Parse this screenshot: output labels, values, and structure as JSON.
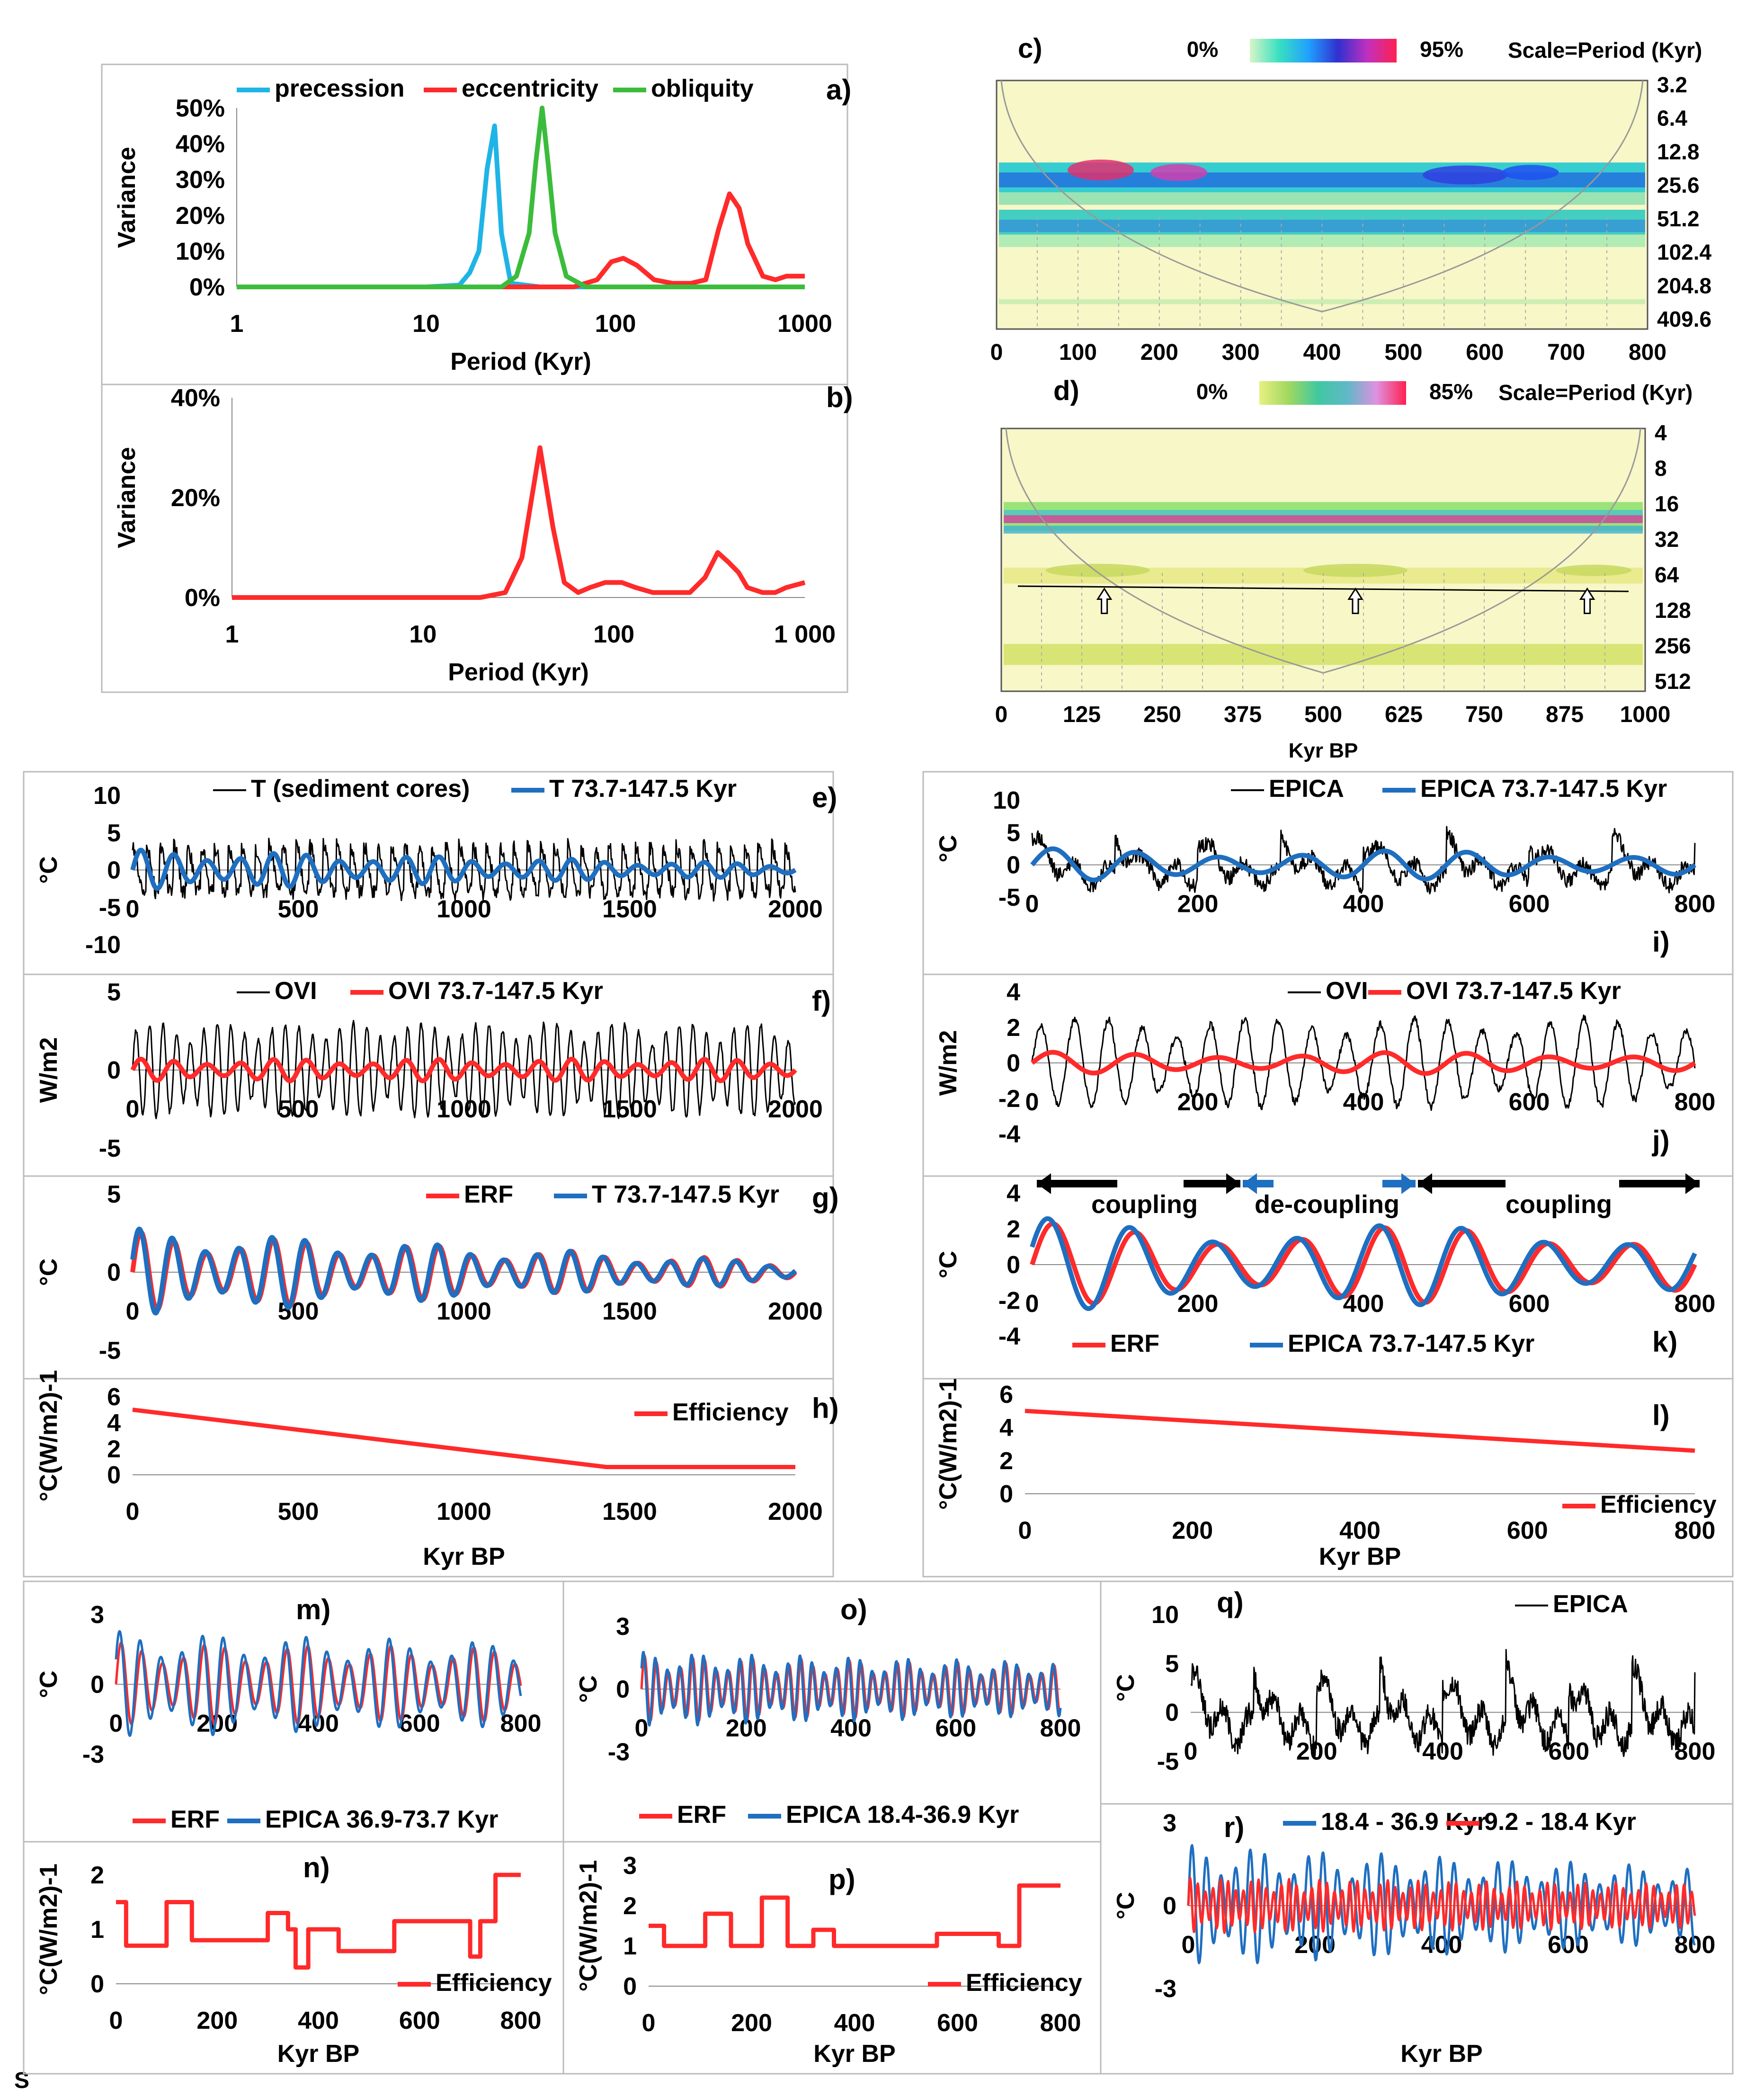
{
  "colors": {
    "black": "#000000",
    "red": "#ff2a2a",
    "blue": "#1f6fc0",
    "cyan": "#1fb4e6",
    "green": "#3cbc3c",
    "panel_border": "#bbbbbb",
    "wavelet_bg": "#f7f7c8"
  },
  "figure_footer": "S",
  "chart_data": [
    {
      "id": "a",
      "type": "line",
      "panel_label": "a)",
      "log_x": true,
      "xlabel": "Period (Kyr)",
      "ylabel": "Variance",
      "x_ticks": [
        1,
        10,
        100,
        1000
      ],
      "x_tick_labels": [
        "1",
        "10",
        "100",
        "1000"
      ],
      "y_ticks": [
        0,
        10,
        20,
        30,
        40,
        50
      ],
      "y_tick_labels": [
        "0%",
        "10%",
        "20%",
        "30%",
        "40%",
        "50%"
      ],
      "xlim": [
        1,
        1000
      ],
      "ylim": [
        0,
        50
      ],
      "series": [
        {
          "name": "precession",
          "color": "#1fb4e6",
          "x": [
            1,
            10,
            15,
            17,
            19,
            21,
            23,
            25,
            28,
            40,
            100,
            1000
          ],
          "y": [
            0,
            0,
            0.5,
            4,
            10,
            33,
            45,
            15,
            1,
            0,
            0,
            0
          ]
        },
        {
          "name": "eccentricity",
          "color": "#ff2a2a",
          "x": [
            1,
            30,
            60,
            80,
            95,
            110,
            130,
            160,
            200,
            250,
            300,
            350,
            400,
            450,
            500,
            600,
            700,
            800,
            900,
            1000
          ],
          "y": [
            0,
            0,
            0,
            2,
            7,
            8,
            6,
            2,
            1,
            1,
            2,
            16,
            26,
            22,
            12,
            3,
            2,
            3,
            3,
            3
          ]
        },
        {
          "name": "obliquity",
          "color": "#3cbc3c",
          "x": [
            1,
            25,
            30,
            35,
            38,
            41,
            44,
            48,
            55,
            70,
            1000
          ],
          "y": [
            0,
            0,
            3,
            15,
            35,
            50,
            35,
            15,
            3,
            0,
            0
          ]
        }
      ]
    },
    {
      "id": "b",
      "type": "line",
      "panel_label": "b)",
      "log_x": true,
      "xlabel": "Period (Kyr)",
      "ylabel": "Variance",
      "x_ticks": [
        1,
        10,
        100,
        1000
      ],
      "x_tick_labels": [
        "1",
        "10",
        "100",
        "1 000"
      ],
      "y_ticks": [
        0,
        20,
        40
      ],
      "y_tick_labels": [
        "0%",
        "20%",
        "40%"
      ],
      "xlim": [
        1,
        1000
      ],
      "ylim": [
        0,
        40
      ],
      "series": [
        {
          "name": "spectrum",
          "color": "#ff2a2a",
          "x": [
            1,
            20,
            27,
            33,
            41,
            48,
            55,
            65,
            75,
            90,
            110,
            130,
            160,
            200,
            250,
            300,
            350,
            400,
            450,
            500,
            600,
            700,
            800,
            1000
          ],
          "y": [
            0,
            0,
            1,
            8,
            30,
            14,
            3,
            1,
            2,
            3,
            3,
            2,
            1,
            1,
            1,
            4,
            9,
            7,
            5,
            2,
            1,
            1,
            2,
            3
          ]
        }
      ]
    },
    {
      "id": "c",
      "type": "heatmap",
      "panel_label": "c)",
      "colorbar_min_label": "0%",
      "colorbar_max_label": "95%",
      "scale_label": "Scale=Period (Kyr)",
      "x_tick_labels": [
        "0",
        "100",
        "200",
        "300",
        "400",
        "500",
        "600",
        "700",
        "800"
      ],
      "y_tick_labels": [
        "3.2",
        "6.4",
        "12.8",
        "25.6",
        "51.2",
        "102.4",
        "204.8",
        "409.6"
      ],
      "xlabel": ""
    },
    {
      "id": "d",
      "type": "heatmap",
      "panel_label": "d)",
      "colorbar_min_label": "0%",
      "colorbar_max_label": "85%",
      "scale_label": "Scale=Period (Kyr)",
      "x_tick_labels": [
        "0",
        "125",
        "250",
        "375",
        "500",
        "625",
        "750",
        "875",
        "1000"
      ],
      "y_tick_labels": [
        "4",
        "8",
        "16",
        "32",
        "64",
        "128",
        "256",
        "512"
      ],
      "xlabel": "Kyr BP"
    },
    {
      "id": "e",
      "type": "line",
      "panel_label": "e)",
      "ylabel": "°C",
      "xlim": [
        0,
        2000
      ],
      "ylim": [
        -10,
        10
      ],
      "x_tick_labels": [
        "0",
        "500",
        "1000",
        "1500",
        "2000"
      ],
      "y_tick_labels": [
        "10",
        "5",
        "0",
        "-5",
        "-10"
      ],
      "legend": [
        "T (sediment cores)",
        "T 73.7-147.5 Kyr"
      ],
      "series": [
        {
          "name": "T (sediment cores)",
          "color": "#000000",
          "kind": "noisy",
          "amplitude": 3.5,
          "period": 41
        },
        {
          "name": "T 73.7-147.5 Kyr",
          "color": "#1f6fc0",
          "kind": "band",
          "amplitude_start": 2.7,
          "amplitude_end": 0.8,
          "period": 100
        }
      ]
    },
    {
      "id": "f",
      "type": "line",
      "panel_label": "f)",
      "ylabel": "W/m2",
      "xlim": [
        0,
        2000
      ],
      "ylim": [
        -5,
        5
      ],
      "x_tick_labels": [
        "0",
        "500",
        "1000",
        "1500",
        "2000"
      ],
      "y_tick_labels": [
        "5",
        "0",
        "-5"
      ],
      "legend": [
        "OVI",
        "OVI 73.7-147.5 Kyr"
      ],
      "series": [
        {
          "name": "OVI",
          "color": "#000000",
          "kind": "oscillation",
          "amplitude": 3,
          "period": 41
        },
        {
          "name": "OVI 73.7-147.5 Kyr",
          "color": "#ff2a2a",
          "kind": "band",
          "amplitude_start": 0.7,
          "amplitude_end": 0.7,
          "period": 100
        }
      ]
    },
    {
      "id": "g",
      "type": "line",
      "panel_label": "g)",
      "ylabel": "°C",
      "xlim": [
        0,
        2000
      ],
      "ylim": [
        -5,
        5
      ],
      "x_tick_labels": [
        "0",
        "500",
        "1000",
        "1500",
        "2000"
      ],
      "y_tick_labels": [
        "5",
        "0",
        "-5"
      ],
      "legend": [
        "ERF",
        "T 73.7-147.5 Kyr"
      ],
      "series": [
        {
          "name": "ERF",
          "color": "#ff2a2a",
          "kind": "band",
          "amplitude_start": 2.6,
          "amplitude_end": 0.7,
          "period": 100
        },
        {
          "name": "T 73.7-147.5 Kyr",
          "color": "#1f6fc0",
          "kind": "band",
          "amplitude_start": 2.8,
          "amplitude_end": 0.6,
          "period": 100,
          "phase": 0.3
        }
      ]
    },
    {
      "id": "h",
      "type": "line",
      "panel_label": "h)",
      "ylabel": "°C(W/m2)-1",
      "xlabel": "Kyr BP",
      "xlim": [
        0,
        2000
      ],
      "ylim": [
        0,
        6
      ],
      "x_tick_labels": [
        "0",
        "500",
        "1000",
        "1500",
        "2000"
      ],
      "y_tick_labels": [
        "6",
        "4",
        "2",
        "0"
      ],
      "legend": [
        "Efficiency"
      ],
      "series": [
        {
          "name": "Efficiency",
          "color": "#ff2a2a",
          "kind": "points",
          "x": [
            0,
            1430,
            2000
          ],
          "y": [
            5,
            0.6,
            0.6
          ]
        }
      ]
    },
    {
      "id": "i",
      "type": "line",
      "panel_label": "i)",
      "ylabel": "°C",
      "xlim": [
        0,
        800
      ],
      "ylim": [
        -5,
        10
      ],
      "x_tick_labels": [
        "0",
        "200",
        "400",
        "600",
        "800"
      ],
      "y_tick_labels": [
        "10",
        "5",
        "0",
        "-5"
      ],
      "legend": [
        "EPICA",
        "EPICA 73.7-147.5 Kyr"
      ],
      "series": [
        {
          "name": "EPICA",
          "color": "#000000",
          "kind": "noisy",
          "amplitude": 4,
          "period": 100
        },
        {
          "name": "EPICA 73.7-147.5 Kyr",
          "color": "#1f6fc0",
          "kind": "band",
          "amplitude_start": 2.5,
          "amplitude_end": 2,
          "period": 100
        }
      ]
    },
    {
      "id": "j",
      "type": "line",
      "panel_label": "j)",
      "ylabel": "W/m2",
      "xlim": [
        0,
        800
      ],
      "ylim": [
        -4,
        4
      ],
      "x_tick_labels": [
        "0",
        "200",
        "400",
        "600",
        "800"
      ],
      "y_tick_labels": [
        "4",
        "2",
        "0",
        "-2",
        "-4"
      ],
      "legend": [
        "OVI",
        "OVI 73.7-147.5 Kyr"
      ],
      "series": [
        {
          "name": "OVI",
          "color": "#000000",
          "kind": "oscillation",
          "amplitude": 2.5,
          "period": 41
        },
        {
          "name": "OVI 73.7-147.5 Kyr",
          "color": "#ff2a2a",
          "kind": "band",
          "amplitude_start": 0.6,
          "amplitude_end": 0.6,
          "period": 100
        }
      ]
    },
    {
      "id": "k",
      "type": "line",
      "panel_label": "k)",
      "ylabel": "°C",
      "xlim": [
        0,
        800
      ],
      "ylim": [
        -4,
        4
      ],
      "x_tick_labels": [
        "0",
        "200",
        "400",
        "600",
        "800"
      ],
      "y_tick_labels": [
        "4",
        "2",
        "0",
        "-2",
        "-4"
      ],
      "legend": [
        "ERF",
        "EPICA 73.7-147.5 Kyr"
      ],
      "annotations": [
        "coupling",
        "de-coupling",
        "coupling"
      ],
      "series": [
        {
          "name": "ERF",
          "color": "#ff2a2a",
          "kind": "band",
          "amplitude_start": 2.3,
          "amplitude_end": 2.0,
          "period": 100
        },
        {
          "name": "EPICA 73.7-147.5 Kyr",
          "color": "#1f6fc0",
          "kind": "band",
          "amplitude_start": 2.6,
          "amplitude_end": 2.0,
          "period": 100,
          "phase": 0.4
        }
      ]
    },
    {
      "id": "l",
      "type": "line",
      "panel_label": "l)",
      "ylabel": "°C(W/m2)-1",
      "xlabel": "Kyr BP",
      "xlim": [
        0,
        800
      ],
      "ylim": [
        0,
        6
      ],
      "x_tick_labels": [
        "0",
        "200",
        "400",
        "600",
        "800"
      ],
      "y_tick_labels": [
        "6",
        "4",
        "2",
        "0"
      ],
      "legend": [
        "Efficiency"
      ],
      "series": [
        {
          "name": "Efficiency",
          "color": "#ff2a2a",
          "kind": "points",
          "x": [
            0,
            800
          ],
          "y": [
            5,
            2.6
          ]
        }
      ]
    },
    {
      "id": "m",
      "type": "line",
      "panel_label": "m)",
      "ylabel": "°C",
      "xlim": [
        0,
        800
      ],
      "ylim": [
        -3,
        3
      ],
      "x_tick_labels": [
        "0",
        "200",
        "400",
        "600",
        "800"
      ],
      "y_tick_labels": [
        "3",
        "0",
        "-3"
      ],
      "legend": [
        "ERF",
        "EPICA 36.9-73.7 Kyr"
      ],
      "series": [
        {
          "name": "ERF",
          "color": "#ff2a2a",
          "kind": "band",
          "amplitude_start": 1.8,
          "amplitude_end": 1.6,
          "period": 41
        },
        {
          "name": "EPICA 36.9-73.7 Kyr",
          "color": "#1f6fc0",
          "kind": "band",
          "amplitude_start": 2.3,
          "amplitude_end": 1.8,
          "period": 41,
          "phase": 0.5
        }
      ]
    },
    {
      "id": "n",
      "type": "line",
      "panel_label": "n)",
      "ylabel": "°C(W/m2)-1",
      "xlabel": "Kyr BP",
      "xlim": [
        0,
        800
      ],
      "ylim": [
        0,
        2
      ],
      "x_tick_labels": [
        "0",
        "200",
        "400",
        "600",
        "800"
      ],
      "y_tick_labels": [
        "2",
        "1",
        "0"
      ],
      "legend": [
        "Efficiency"
      ],
      "series": [
        {
          "name": "Efficiency",
          "color": "#ff2a2a",
          "kind": "step",
          "x": [
            0,
            20,
            100,
            150,
            300,
            340,
            355,
            380,
            440,
            550,
            700,
            720,
            750,
            800
          ],
          "y": [
            1.5,
            0.7,
            1.5,
            0.8,
            1.3,
            1.0,
            0.3,
            1.0,
            0.6,
            1.15,
            0.5,
            1.15,
            2.0,
            2.0
          ]
        }
      ]
    },
    {
      "id": "o",
      "type": "line",
      "panel_label": "o)",
      "ylabel": "°C",
      "xlim": [
        0,
        800
      ],
      "ylim": [
        -3,
        3
      ],
      "x_tick_labels": [
        "0",
        "200",
        "400",
        "600",
        "800"
      ],
      "y_tick_labels": [
        "3",
        "0",
        "-3"
      ],
      "legend": [
        "ERF",
        "EPICA 18.4-36.9 Kyr"
      ],
      "series": [
        {
          "name": "ERF",
          "color": "#ff2a2a",
          "kind": "band",
          "amplitude_start": 1.6,
          "amplitude_end": 1.2,
          "period": 23
        },
        {
          "name": "EPICA 18.4-36.9 Kyr",
          "color": "#1f6fc0",
          "kind": "band",
          "amplitude_start": 1.8,
          "amplitude_end": 1.3,
          "period": 23,
          "phase": 0.6
        }
      ]
    },
    {
      "id": "p",
      "type": "line",
      "panel_label": "p)",
      "ylabel": "°C(W/m2)-1",
      "xlabel": "Kyr BP",
      "xlim": [
        0,
        800
      ],
      "ylim": [
        0,
        3
      ],
      "x_tick_labels": [
        "0",
        "200",
        "400",
        "600",
        "800"
      ],
      "y_tick_labels": [
        "3",
        "2",
        "1",
        "0"
      ],
      "legend": [
        "Efficiency"
      ],
      "series": [
        {
          "name": "Efficiency",
          "color": "#ff2a2a",
          "kind": "step",
          "x": [
            0,
            30,
            110,
            160,
            220,
            270,
            320,
            360,
            560,
            680,
            720,
            800
          ],
          "y": [
            1.5,
            1.0,
            1.8,
            1.0,
            2.2,
            1.0,
            1.4,
            1.0,
            1.3,
            1.0,
            2.5,
            2.5
          ]
        }
      ]
    },
    {
      "id": "q",
      "type": "line",
      "panel_label": "q)",
      "ylabel": "°C",
      "xlim": [
        0,
        800
      ],
      "ylim": [
        -5,
        10
      ],
      "x_tick_labels": [
        "0",
        "200",
        "400",
        "600",
        "800"
      ],
      "y_tick_labels": [
        "10",
        "5",
        "0",
        "-5"
      ],
      "legend": [
        "EPICA"
      ],
      "series": [
        {
          "name": "EPICA",
          "color": "#000000",
          "kind": "noisy",
          "amplitude": 4,
          "period": 100
        }
      ]
    },
    {
      "id": "r",
      "type": "line",
      "panel_label": "r)",
      "ylabel": "°C",
      "xlabel": "Kyr BP",
      "xlim": [
        0,
        800
      ],
      "ylim": [
        -3,
        3
      ],
      "x_tick_labels": [
        "0",
        "200",
        "400",
        "600",
        "800"
      ],
      "y_tick_labels": [
        "3",
        "0",
        "-3"
      ],
      "legend": [
        "18.4 - 36.9 Kyr",
        "9.2 - 18.4 Kyr"
      ],
      "series": [
        {
          "name": "18.4 - 36.9 Kyr",
          "color": "#1f6fc0",
          "kind": "band",
          "amplitude_start": 2.2,
          "amplitude_end": 1.4,
          "period": 23
        },
        {
          "name": "9.2 - 18.4 Kyr",
          "color": "#ff2a2a",
          "kind": "band",
          "amplitude_start": 1.0,
          "amplitude_end": 0.8,
          "period": 12
        }
      ]
    }
  ]
}
